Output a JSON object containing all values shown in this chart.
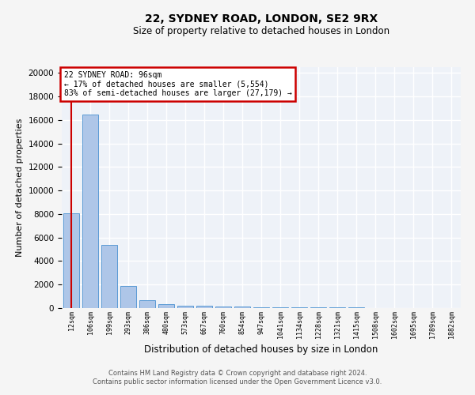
{
  "title": "22, SYDNEY ROAD, LONDON, SE2 9RX",
  "subtitle": "Size of property relative to detached houses in London",
  "xlabel": "Distribution of detached houses by size in London",
  "ylabel": "Number of detached properties",
  "categories": [
    "12sqm",
    "106sqm",
    "199sqm",
    "293sqm",
    "386sqm",
    "480sqm",
    "573sqm",
    "667sqm",
    "760sqm",
    "854sqm",
    "947sqm",
    "1041sqm",
    "1134sqm",
    "1228sqm",
    "1321sqm",
    "1415sqm",
    "1508sqm",
    "1602sqm",
    "1695sqm",
    "1789sqm",
    "1882sqm"
  ],
  "values": [
    8050,
    16500,
    5400,
    1850,
    700,
    320,
    200,
    175,
    150,
    120,
    100,
    80,
    65,
    50,
    40,
    35,
    30,
    25,
    20,
    18,
    15
  ],
  "bar_color": "#aec6e8",
  "bar_edge_color": "#5b9bd5",
  "vline_color": "#cc0000",
  "annotation_title": "22 SYDNEY ROAD: 96sqm",
  "annotation_line1": "← 17% of detached houses are smaller (5,554)",
  "annotation_line2": "83% of semi-detached houses are larger (27,179) →",
  "annotation_box_color": "#ffffff",
  "annotation_box_edge": "#cc0000",
  "ylim": [
    0,
    20500
  ],
  "yticks": [
    0,
    2000,
    4000,
    6000,
    8000,
    10000,
    12000,
    14000,
    16000,
    18000,
    20000
  ],
  "background_color": "#eef2f8",
  "fig_background_color": "#f5f5f5",
  "grid_color": "#ffffff",
  "footer_line1": "Contains HM Land Registry data © Crown copyright and database right 2024.",
  "footer_line2": "Contains public sector information licensed under the Open Government Licence v3.0."
}
